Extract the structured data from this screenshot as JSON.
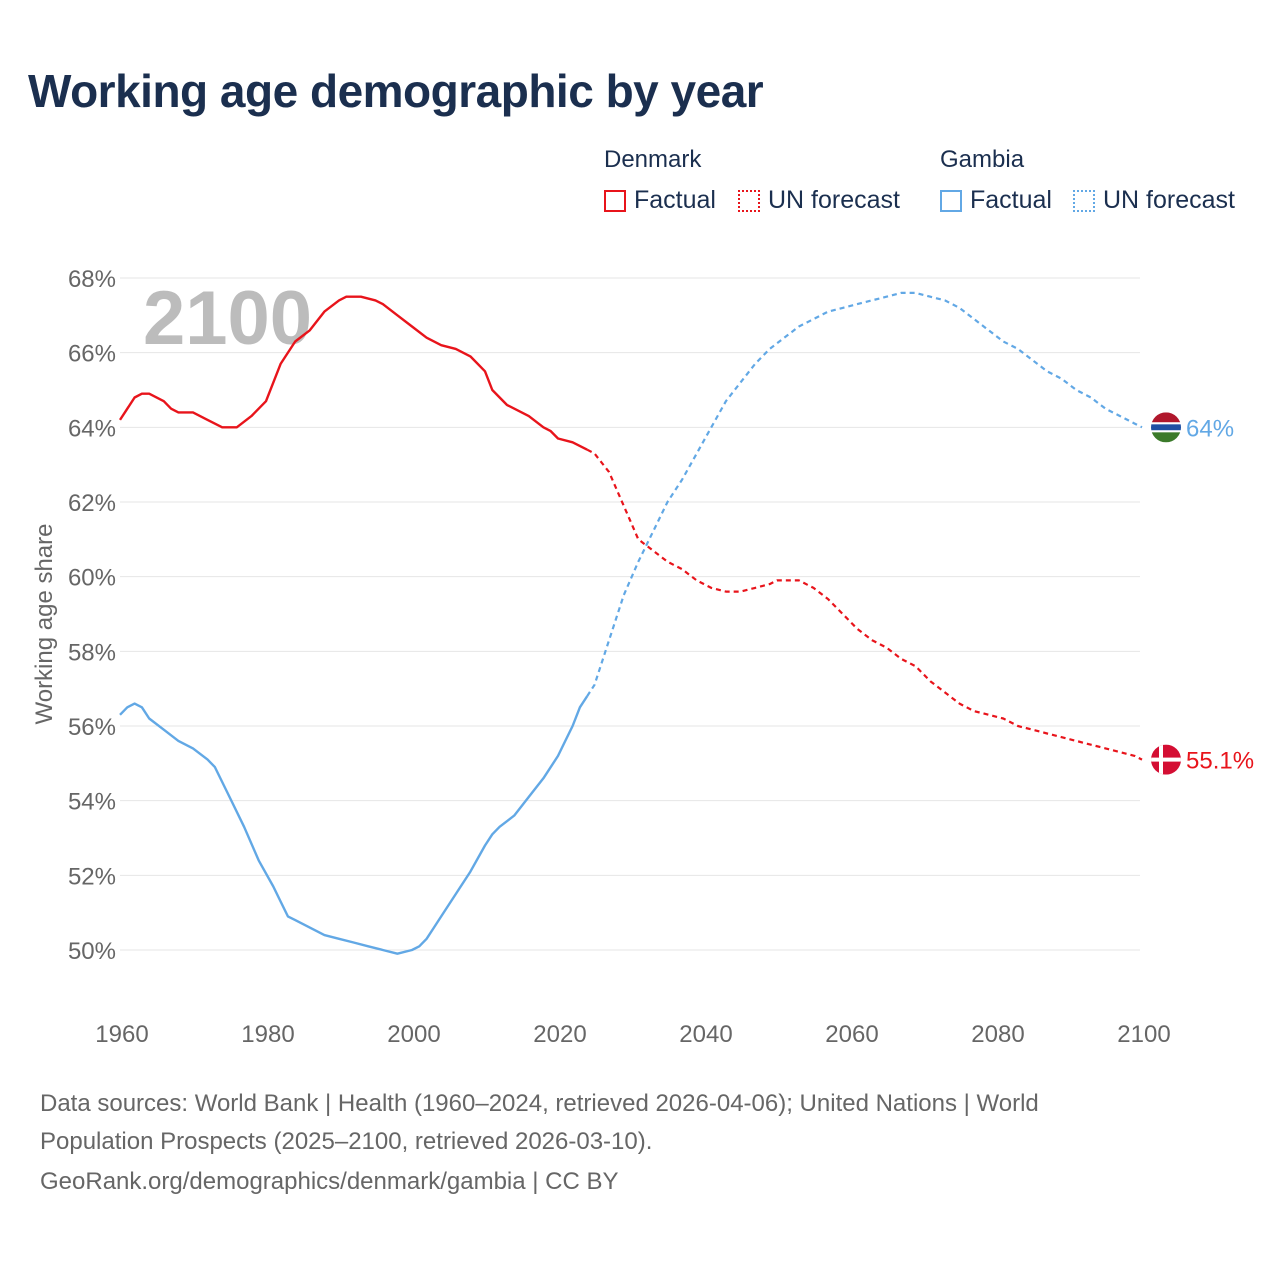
{
  "title": "Working age demographic by year",
  "legend": {
    "groups": [
      {
        "name": "Denmark",
        "factual": "Factual",
        "forecast": "UN forecast",
        "color": "#e8141b"
      },
      {
        "name": "Gambia",
        "factual": "Factual",
        "forecast": "UN forecast",
        "color": "#62a8e5"
      }
    ]
  },
  "chart_data": {
    "type": "line",
    "title": "Working age demographic by year",
    "xlabel": "",
    "ylabel": "Working age share",
    "xlim": [
      1960,
      2103
    ],
    "ylim": [
      49,
      68
    ],
    "x_ticks": [
      1960,
      1980,
      2000,
      2020,
      2040,
      2060,
      2080,
      2100
    ],
    "x_tick_labels": [
      "1960",
      "1980",
      "2000",
      "2020",
      "2040",
      "2060",
      "2080",
      "2100"
    ],
    "y_ticks": [
      50,
      52,
      54,
      56,
      58,
      60,
      62,
      64,
      66,
      68
    ],
    "y_tick_labels": [
      "50%",
      "52%",
      "54%",
      "56%",
      "58%",
      "60%",
      "62%",
      "64%",
      "66%",
      "68%"
    ],
    "year_overlay": "2100",
    "grid": true,
    "series": [
      {
        "name": "Denmark",
        "color": "#e8141b",
        "end_label": "55.1%",
        "flag": "denmark-flag",
        "factual": {
          "x": [
            1960,
            1962,
            1963,
            1964,
            1966,
            1967,
            1968,
            1970,
            1972,
            1974,
            1976,
            1978,
            1980,
            1982,
            1984,
            1986,
            1988,
            1990,
            1991,
            1993,
            1995,
            1996,
            1998,
            2000,
            2002,
            2004,
            2006,
            2008,
            2010,
            2011,
            2013,
            2016,
            2018,
            2019,
            2020,
            2022,
            2024
          ],
          "y": [
            64.2,
            64.8,
            64.9,
            64.9,
            64.7,
            64.5,
            64.4,
            64.4,
            64.2,
            64.0,
            64.0,
            64.3,
            64.7,
            65.7,
            66.3,
            66.6,
            67.1,
            67.4,
            67.5,
            67.5,
            67.4,
            67.3,
            67.0,
            66.7,
            66.4,
            66.2,
            66.1,
            65.9,
            65.5,
            65.0,
            64.6,
            64.3,
            64.0,
            63.9,
            63.7,
            63.6,
            63.4
          ]
        },
        "forecast": {
          "x": [
            2024,
            2025,
            2027,
            2029,
            2031,
            2033,
            2035,
            2037,
            2039,
            2041,
            2043,
            2045,
            2047,
            2049,
            2050,
            2053,
            2055,
            2057,
            2059,
            2061,
            2063,
            2065,
            2067,
            2069,
            2071,
            2073,
            2075,
            2077,
            2079,
            2081,
            2083,
            2085,
            2087,
            2089,
            2091,
            2093,
            2095,
            2097,
            2099,
            2100
          ],
          "y": [
            63.4,
            63.3,
            62.8,
            61.9,
            61.0,
            60.7,
            60.4,
            60.2,
            59.9,
            59.7,
            59.6,
            59.6,
            59.7,
            59.8,
            59.9,
            59.9,
            59.7,
            59.4,
            59.0,
            58.6,
            58.3,
            58.1,
            57.8,
            57.6,
            57.2,
            56.9,
            56.6,
            56.4,
            56.3,
            56.2,
            56.0,
            55.9,
            55.8,
            55.7,
            55.6,
            55.5,
            55.4,
            55.3,
            55.2,
            55.1
          ]
        }
      },
      {
        "name": "Gambia",
        "color": "#62a8e5",
        "end_label": "64%",
        "flag": "gambia-flag",
        "factual": {
          "x": [
            1960,
            1961,
            1962,
            1963,
            1964,
            1966,
            1968,
            1970,
            1972,
            1973,
            1975,
            1977,
            1979,
            1981,
            1982,
            1983,
            1984,
            1986,
            1988,
            1990,
            1992,
            1994,
            1996,
            1998,
            2000,
            2001,
            2002,
            2003,
            2004,
            2006,
            2008,
            2010,
            2011,
            2012,
            2014,
            2016,
            2018,
            2020,
            2021,
            2022,
            2023,
            2024
          ],
          "y": [
            56.3,
            56.5,
            56.6,
            56.5,
            56.2,
            55.9,
            55.6,
            55.4,
            55.1,
            54.9,
            54.1,
            53.3,
            52.4,
            51.7,
            51.3,
            50.9,
            50.8,
            50.6,
            50.4,
            50.3,
            50.2,
            50.1,
            50.0,
            49.9,
            50.0,
            50.1,
            50.3,
            50.6,
            50.9,
            51.5,
            52.1,
            52.8,
            53.1,
            53.3,
            53.6,
            54.1,
            54.6,
            55.2,
            55.6,
            56.0,
            56.5,
            56.8
          ]
        },
        "forecast": {
          "x": [
            2024,
            2025,
            2027,
            2029,
            2031,
            2033,
            2035,
            2037,
            2039,
            2041,
            2043,
            2045,
            2047,
            2049,
            2051,
            2053,
            2055,
            2057,
            2059,
            2061,
            2063,
            2065,
            2067,
            2069,
            2071,
            2073,
            2075,
            2077,
            2079,
            2081,
            2083,
            2085,
            2087,
            2089,
            2091,
            2093,
            2095,
            2097,
            2099,
            2100
          ],
          "y": [
            56.8,
            57.1,
            58.3,
            59.5,
            60.4,
            61.2,
            62.0,
            62.6,
            63.3,
            64.0,
            64.7,
            65.2,
            65.7,
            66.1,
            66.4,
            66.7,
            66.9,
            67.1,
            67.2,
            67.3,
            67.4,
            67.5,
            67.6,
            67.6,
            67.5,
            67.4,
            67.2,
            66.9,
            66.6,
            66.3,
            66.1,
            65.8,
            65.5,
            65.3,
            65.0,
            64.8,
            64.5,
            64.3,
            64.1,
            64.0
          ]
        }
      }
    ]
  },
  "footer": {
    "line1": "Data sources: World Bank | Health (1960–2024, retrieved 2026-04-06); United Nations | World",
    "line2": "Population Prospects (2025–2100, retrieved 2026-03-10).",
    "line3": "GeoRank.org/demographics/denmark/gambia | CC BY"
  }
}
